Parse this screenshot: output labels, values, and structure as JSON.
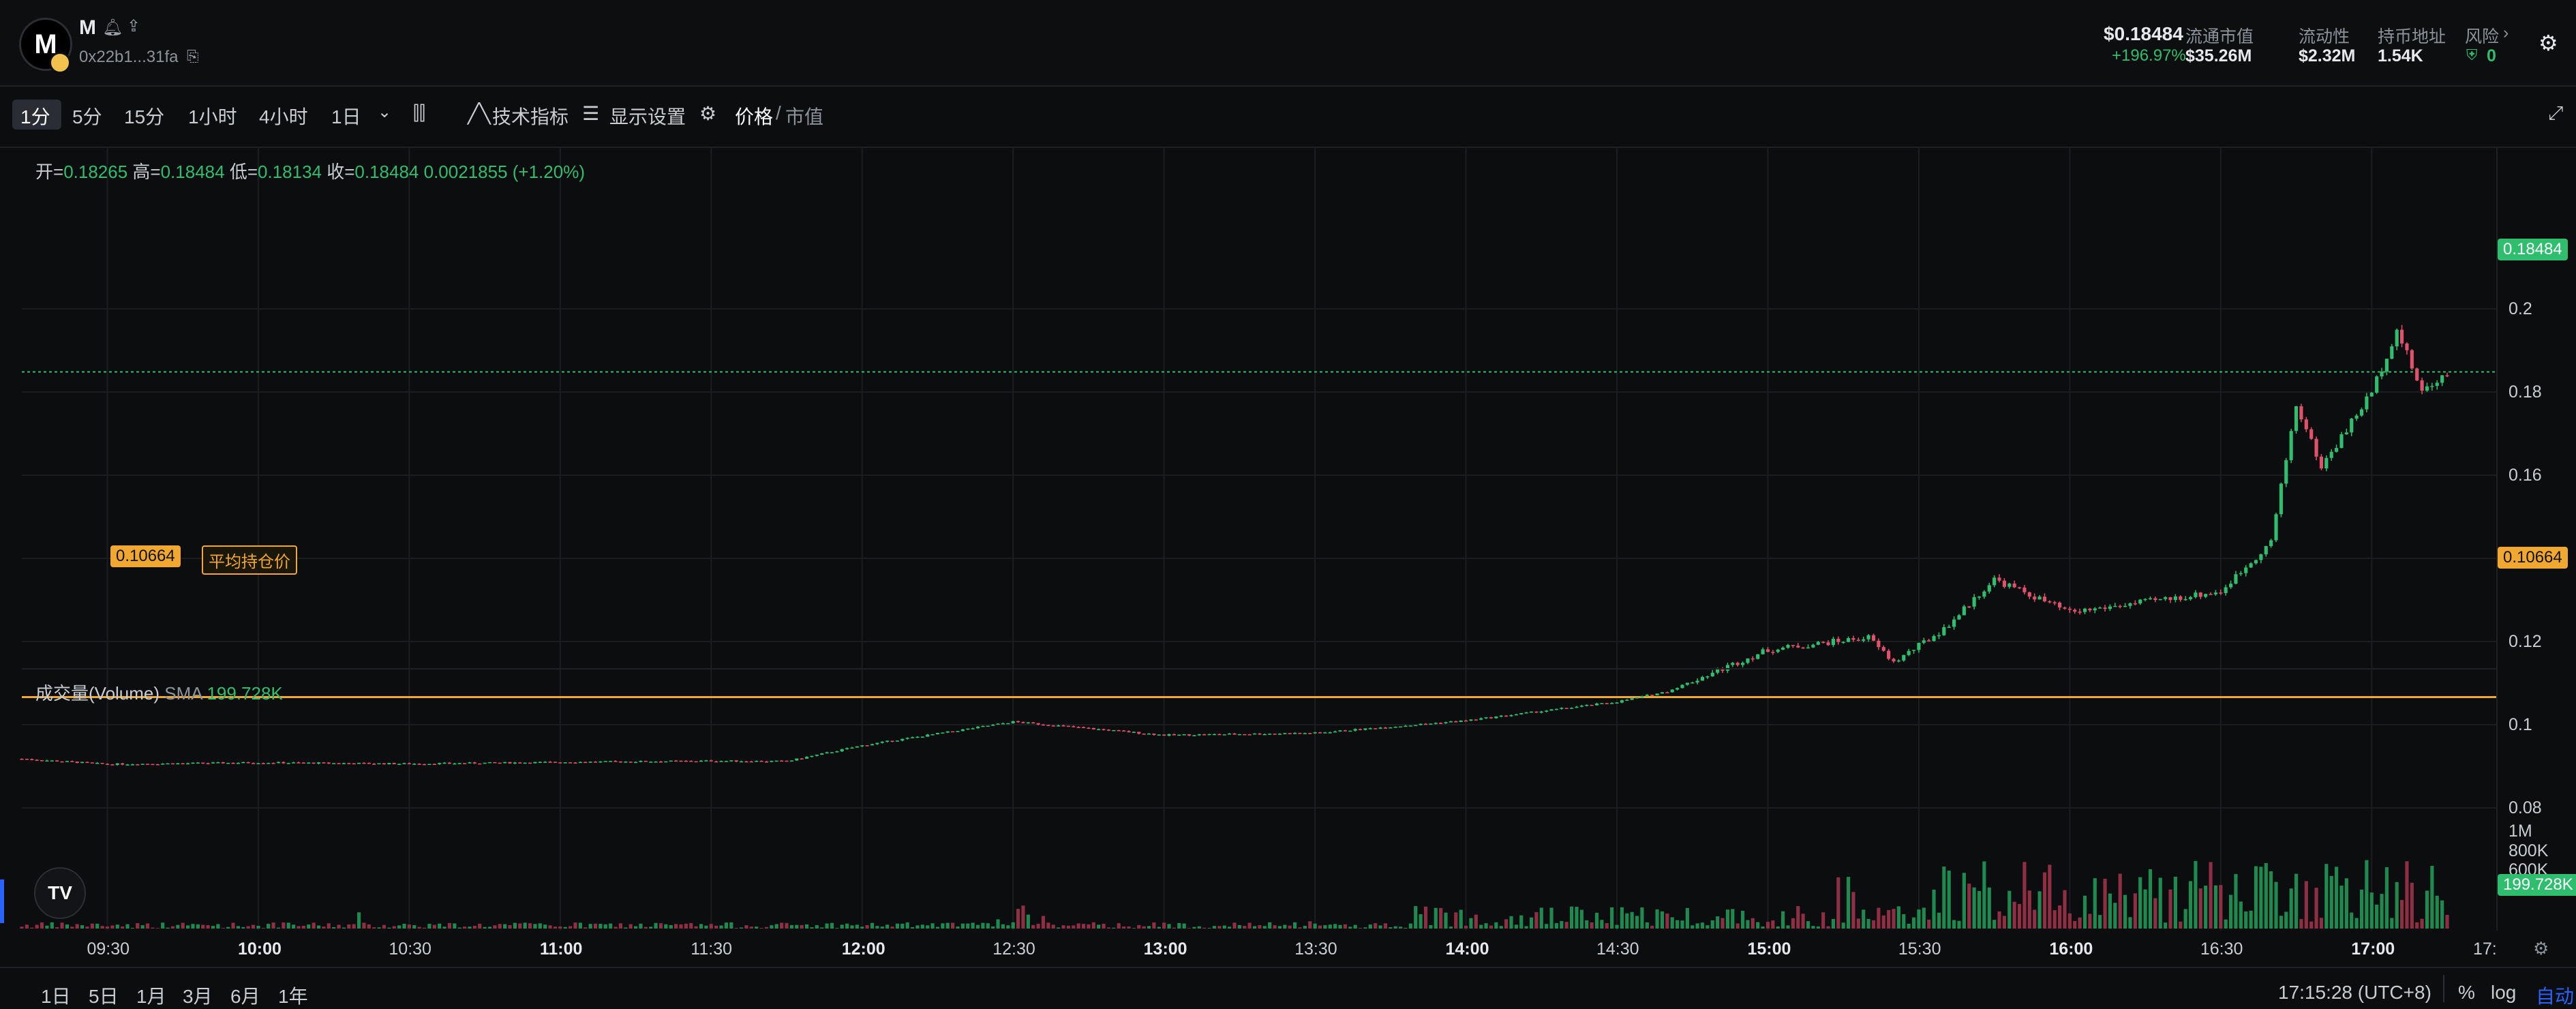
{
  "token": {
    "logo_letter": "M",
    "name": "M",
    "address": "0x22b1...31fa"
  },
  "header_stats": {
    "price": "$0.18484",
    "change": "+196.97%",
    "mcap_label": "流通市值",
    "mcap_value": "$35.26M",
    "liquidity_label": "流动性",
    "liquidity_value": "$2.32M",
    "holders_label": "持币地址",
    "holders_value": "1.54K",
    "risk_label": "风险",
    "risk_value": "0"
  },
  "toolbar": {
    "timeframes": [
      "1分",
      "5分",
      "15分",
      "1小时",
      "4小时",
      "1日"
    ],
    "indicators": "技术指标",
    "display": "显示设置",
    "price": "价格",
    "mcap": "市值"
  },
  "ohlc": {
    "open_label": "开=",
    "open": "0.18265",
    "high_label": "高=",
    "high": "0.18484",
    "low_label": "低=",
    "low": "0.18134",
    "close_label": "收=",
    "close": "0.18484",
    "change": "0.0021855 (+1.20%)"
  },
  "avg_cost": {
    "value": "0.10664",
    "label": "平均持仓价"
  },
  "price_axis": [
    "0.2",
    "0.18",
    "0.16",
    "0.14",
    "0.12",
    "0.1",
    "0.08"
  ],
  "current_price_tag": "0.18484",
  "avg_price_tag": "0.10664",
  "volume": {
    "label": "成交量(Volume)",
    "sma_label": "SMA",
    "sma_value": "199.728K",
    "tag": "199.728K"
  },
  "volume_axis": [
    "1M",
    "800K",
    "600K",
    "400K"
  ],
  "time_axis": [
    "09:30",
    "10:00",
    "10:30",
    "11:00",
    "11:30",
    "12:00",
    "12:30",
    "13:00",
    "13:30",
    "14:00",
    "14:30",
    "15:00",
    "15:30",
    "16:00",
    "16:30",
    "17:00",
    "17:"
  ],
  "bottom": {
    "ranges": [
      "1日",
      "5日",
      "1月",
      "3月",
      "6月",
      "1年"
    ],
    "clock": "17:15:28 (UTC+8)",
    "percent": "%",
    "log": "log",
    "auto": "自动"
  },
  "colors": {
    "up": "#2fbd6e",
    "down": "#e0516b",
    "avg_line": "#f0a830",
    "accent": "#2962ff"
  },
  "chart_data": {
    "type": "candlestick",
    "price_anchors": [
      {
        "t": "09:13",
        "p": 0.0918
      },
      {
        "t": "09:30",
        "p": 0.0905
      },
      {
        "t": "10:00",
        "p": 0.0909
      },
      {
        "t": "10:30",
        "p": 0.0906
      },
      {
        "t": "11:00",
        "p": 0.091
      },
      {
        "t": "11:30",
        "p": 0.0913
      },
      {
        "t": "11:45",
        "p": 0.0912
      },
      {
        "t": "12:00",
        "p": 0.095
      },
      {
        "t": "12:30",
        "p": 0.1007
      },
      {
        "t": "13:00",
        "p": 0.0975
      },
      {
        "t": "13:30",
        "p": 0.098
      },
      {
        "t": "14:00",
        "p": 0.101
      },
      {
        "t": "14:30",
        "p": 0.1055
      },
      {
        "t": "14:40",
        "p": 0.108
      },
      {
        "t": "15:00",
        "p": 0.118
      },
      {
        "t": "15:20",
        "p": 0.121
      },
      {
        "t": "15:25",
        "p": 0.115
      },
      {
        "t": "15:35",
        "p": 0.123
      },
      {
        "t": "15:45",
        "p": 0.135
      },
      {
        "t": "16:00",
        "p": 0.127
      },
      {
        "t": "16:30",
        "p": 0.132
      },
      {
        "t": "16:40",
        "p": 0.144
      },
      {
        "t": "16:45",
        "p": 0.177
      },
      {
        "t": "16:50",
        "p": 0.162
      },
      {
        "t": "17:00",
        "p": 0.18
      },
      {
        "t": "17:05",
        "p": 0.195
      },
      {
        "t": "17:10",
        "p": 0.18
      },
      {
        "t": "17:15",
        "p": 0.18484
      }
    ],
    "price_ylim": [
      0.08,
      0.2
    ],
    "volume_ylim": [
      0,
      1100000
    ],
    "x_range": [
      "09:13",
      "17:15"
    ]
  }
}
